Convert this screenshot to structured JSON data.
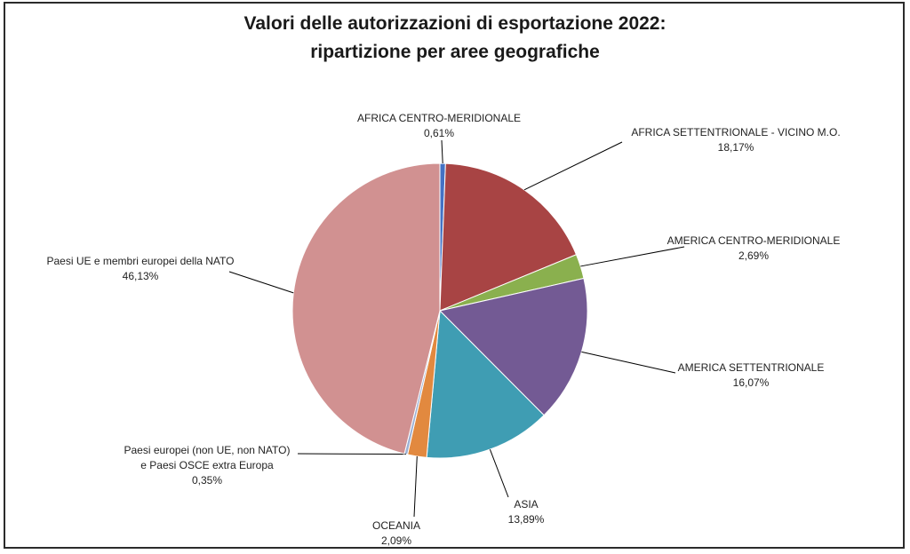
{
  "chart_data": {
    "type": "pie",
    "title_line1": "Valori delle autorizzazioni di esportazione 2022:",
    "title_line2": "ripartizione per aree geografiche",
    "slices": [
      {
        "name": "AFRICA CENTRO-MERIDIONALE",
        "value": 0.61,
        "value_label": "0,61%",
        "color": "#4472c4"
      },
      {
        "name": "AFRICA SETTENTRIONALE - VICINO M.O.",
        "value": 18.17,
        "value_label": "18,17%",
        "color": "#a84444"
      },
      {
        "name": "AMERICA CENTRO-MERIDIONALE",
        "value": 2.69,
        "value_label": "2,69%",
        "color": "#8ab04e"
      },
      {
        "name": "AMERICA SETTENTRIONALE",
        "value": 16.07,
        "value_label": "16,07%",
        "color": "#735a94"
      },
      {
        "name": "ASIA",
        "value": 13.89,
        "value_label": "13,89%",
        "color": "#3f9db3"
      },
      {
        "name": "OCEANIA",
        "value": 2.09,
        "value_label": "2,09%",
        "color": "#e2893f"
      },
      {
        "name": [
          "Paesi europei (non UE, non NATO)",
          "e Paesi OSCE extra Europa"
        ],
        "value": 0.35,
        "value_label": "0,35%",
        "color": "#9bb0d4"
      },
      {
        "name": "Paesi UE e membri europei della NATO",
        "value": 46.13,
        "value_label": "46,13%",
        "color": "#d19191"
      }
    ]
  }
}
